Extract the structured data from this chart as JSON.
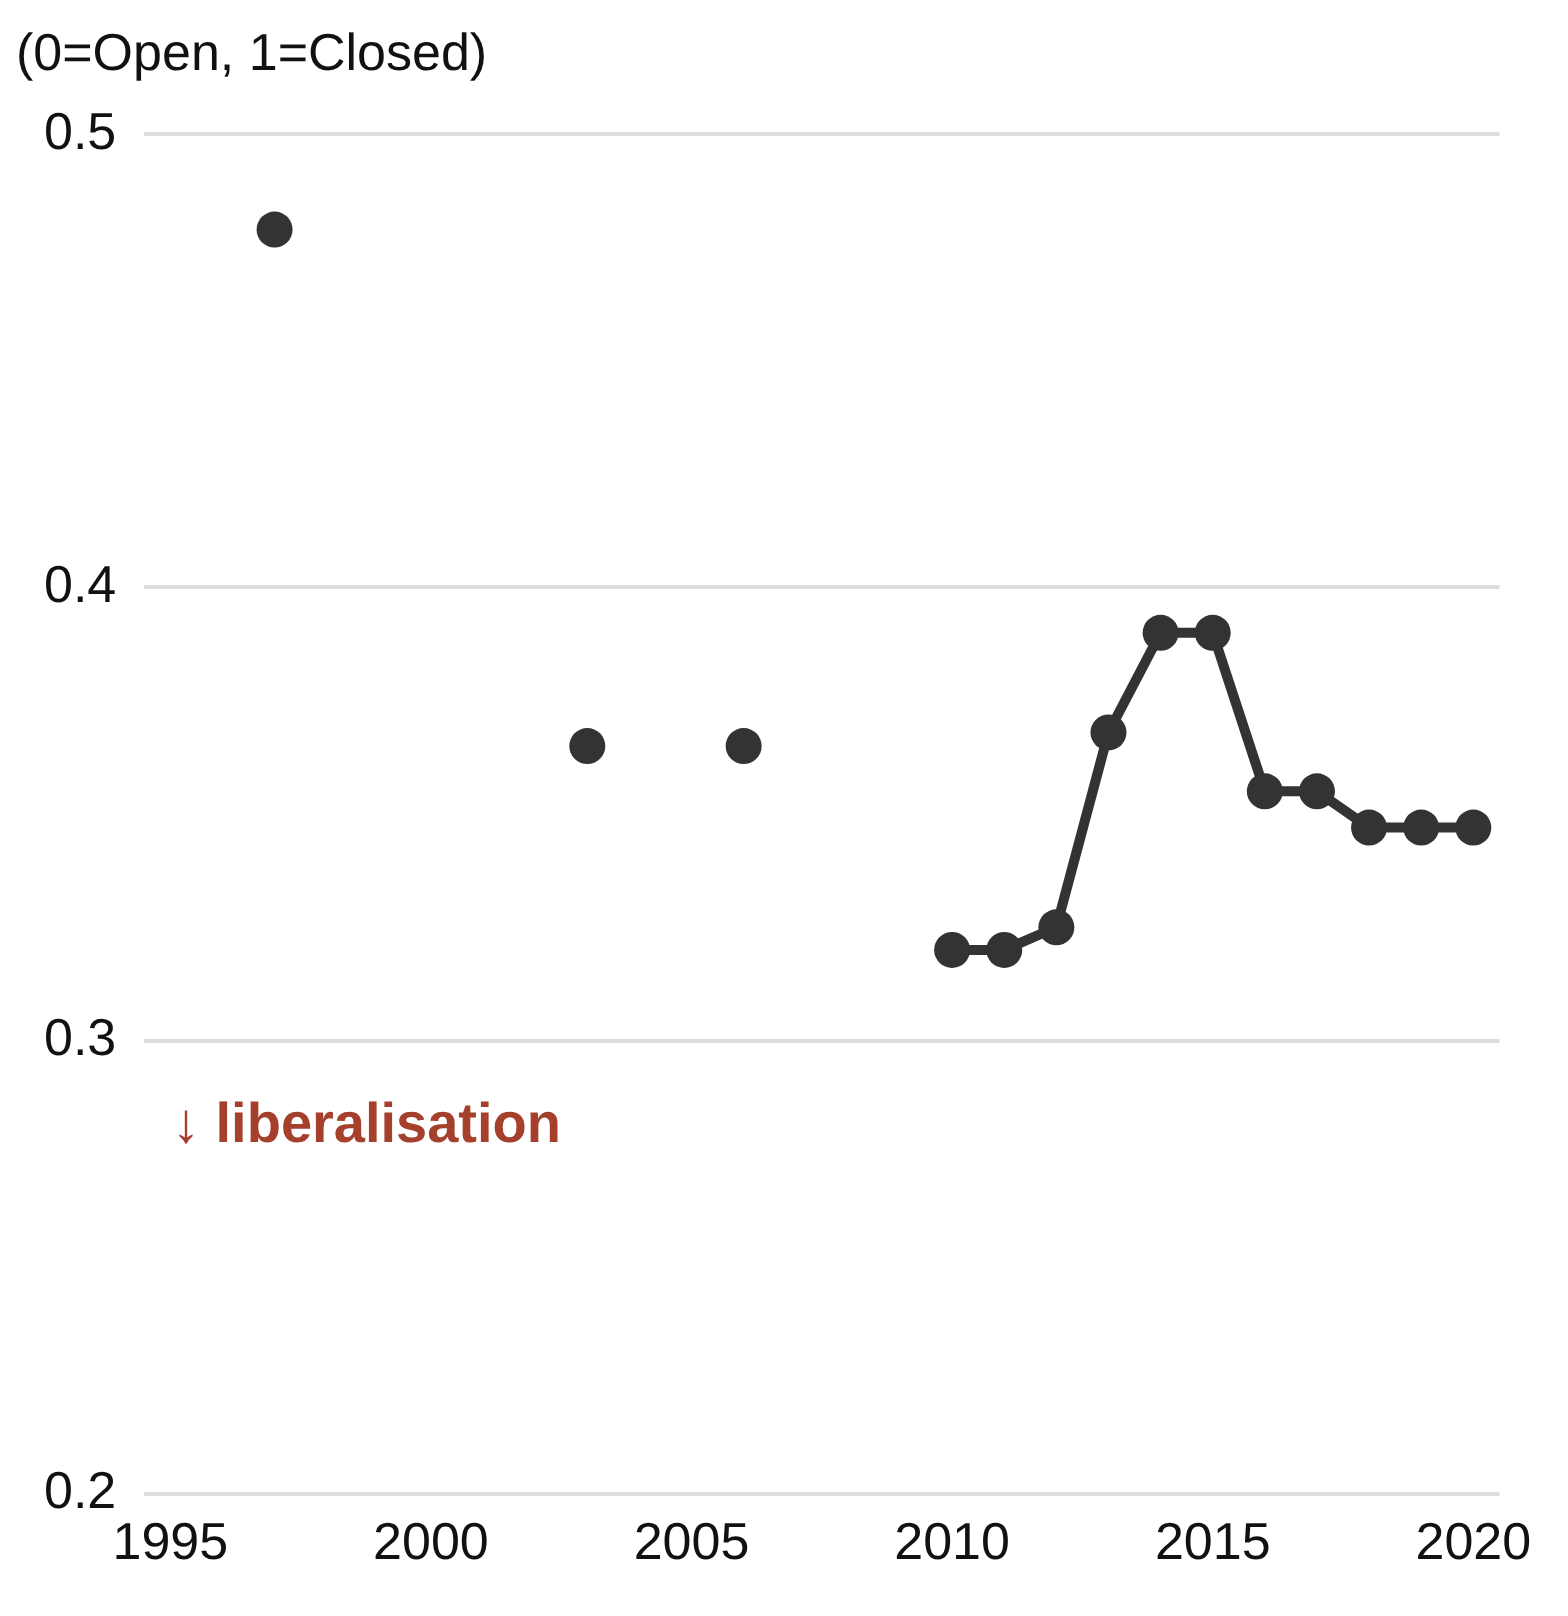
{
  "chart_data": {
    "type": "line",
    "title": "(0=Open, 1=Closed)",
    "annotations": [
      "↓ liberalisation"
    ],
    "series": [
      {
        "type": "scatter",
        "color": "#333333",
        "x": [
          1997,
          2003,
          2006
        ],
        "values": [
          0.479,
          0.365,
          0.365
        ]
      },
      {
        "color": "#333333",
        "x": [
          2010,
          2011,
          2012,
          2013,
          2014,
          2015,
          2016,
          2017,
          2018,
          2019,
          2020
        ],
        "values": [
          0.32,
          0.32,
          0.325,
          0.368,
          0.39,
          0.39,
          0.355,
          0.355,
          0.347,
          0.347,
          0.347
        ]
      }
    ],
    "xlim": [
      1994.5,
      2020.5
    ],
    "xticks": [
      1995,
      2000,
      2005,
      2010,
      2015,
      2020
    ],
    "ylim": [
      0.2,
      0.5
    ],
    "yticks": [
      0.2,
      0.3,
      0.4,
      0.5
    ],
    "grid": "y",
    "legend": false,
    "marker": "circle",
    "line_style": "solid"
  }
}
